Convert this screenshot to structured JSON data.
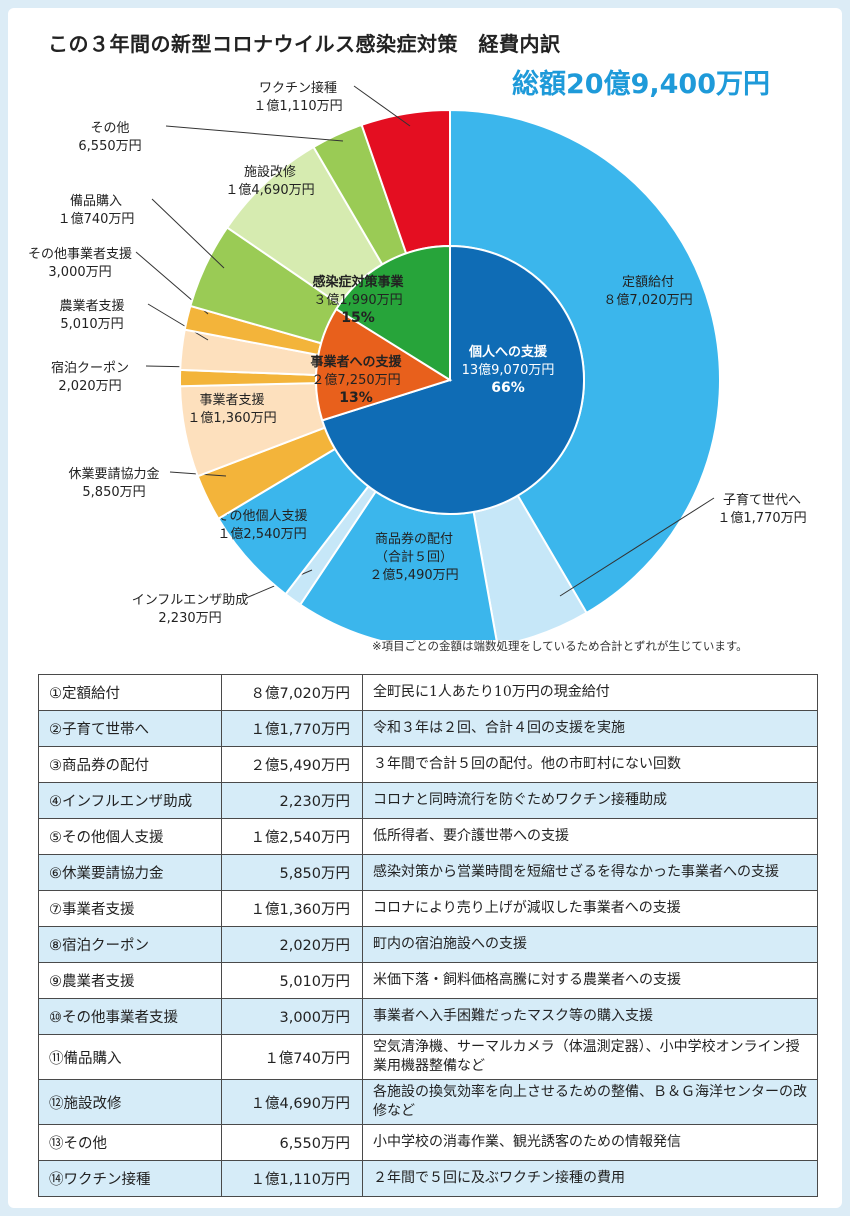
{
  "title": "この３年間の新型コロナウイルス感染症対策　経費内訳",
  "total": "総額20億9,400万円",
  "note": "※項目ごとの金額は端数処理をしているため合計とずれが生じています。",
  "colors": {
    "personal": "#0f6cb5",
    "business": "#e8601c",
    "infection": "#27a43a",
    "sky": "#3bb6ec",
    "pale_blue": "#c6e7f8",
    "orange": "#f3b43a",
    "peach": "#fde0bd",
    "green": "#9acb55",
    "pale_green": "#d6ebb0",
    "red": "#e40e21"
  },
  "chart_data": {
    "type": "pie",
    "inner": [
      {
        "name": "個人への支援",
        "amount": "13億9,070万円",
        "percent": "66%",
        "value": 1390.7
      },
      {
        "name": "事業者への支援",
        "amount": "２億7,250万円",
        "percent": "13%",
        "value": 272.5
      },
      {
        "name": "感染症対策事業",
        "amount": "３億1,990万円",
        "percent": "15%",
        "value": 319.9
      }
    ],
    "outer": [
      {
        "name": "定額給付",
        "amount": "８億7,020万円",
        "value": 870.2
      },
      {
        "name": "子育て世代へ",
        "amount": "１億1,770万円",
        "value": 117.7
      },
      {
        "name": "商品券の配付",
        "name2": "（合計５回）",
        "amount": "２億5,490万円",
        "value": 254.9
      },
      {
        "name": "インフルエンザ助成",
        "amount": "2,230万円",
        "value": 22.3
      },
      {
        "name": "その他個人支援",
        "amount": "１億2,540万円",
        "value": 125.4
      },
      {
        "name": "休業要請協力金",
        "amount": "5,850万円",
        "value": 58.5
      },
      {
        "name": "事業者支援",
        "amount": "１億1,360万円",
        "value": 113.6
      },
      {
        "name": "宿泊クーポン",
        "amount": "2,020万円",
        "value": 20.2
      },
      {
        "name": "農業者支援",
        "amount": "5,010万円",
        "value": 50.1
      },
      {
        "name": "その他事業者支援",
        "amount": "3,000万円",
        "value": 30.0
      },
      {
        "name": "備品購入",
        "amount": "１億740万円",
        "value": 107.4
      },
      {
        "name": "施設改修",
        "amount": "１億4,690万円",
        "value": 146.9
      },
      {
        "name": "その他",
        "amount": "6,550万円",
        "value": 65.5
      },
      {
        "name": "ワクチン接種",
        "amount": "１億1,110万円",
        "value": 111.1
      }
    ]
  },
  "table": [
    {
      "no": "①",
      "name": "定額給付",
      "amount": "８億7,020万円",
      "desc": "全町民に1人あたり10万円の現金給付"
    },
    {
      "no": "②",
      "name": "子育て世帯へ",
      "amount": "１億1,770万円",
      "desc": "令和３年は２回、合計４回の支援を実施"
    },
    {
      "no": "③",
      "name": "商品券の配付",
      "amount": "２億5,490万円",
      "desc": "３年間で合計５回の配付。他の市町村にない回数"
    },
    {
      "no": "④",
      "name": "インフルエンザ助成",
      "amount": "2,230万円",
      "desc": "コロナと同時流行を防ぐためワクチン接種助成"
    },
    {
      "no": "⑤",
      "name": "その他個人支援",
      "amount": "１億2,540万円",
      "desc": "低所得者、要介護世帯への支援"
    },
    {
      "no": "⑥",
      "name": "休業要請協力金",
      "amount": "5,850万円",
      "desc": "感染対策から営業時間を短縮せざるを得なかった事業者への支援"
    },
    {
      "no": "⑦",
      "name": "事業者支援",
      "amount": "１億1,360万円",
      "desc": "コロナにより売り上げが減収した事業者への支援"
    },
    {
      "no": "⑧",
      "name": "宿泊クーポン",
      "amount": "2,020万円",
      "desc": "町内の宿泊施設への支援"
    },
    {
      "no": "⑨",
      "name": "農業者支援",
      "amount": "5,010万円",
      "desc": "米価下落・飼料価格高騰に対する農業者への支援"
    },
    {
      "no": "⑩",
      "name": "その他事業者支援",
      "amount": "3,000万円",
      "desc": "事業者へ入手困難だったマスク等の購入支援"
    },
    {
      "no": "⑪",
      "name": "備品購入",
      "amount": "１億740万円",
      "desc": "空気清浄機、サーマルカメラ（体温測定器）、小中学校オンライン授業用機器整備など"
    },
    {
      "no": "⑫",
      "name": "施設改修",
      "amount": "１億4,690万円",
      "desc": "各施設の換気効率を向上させるための整備、Ｂ＆Ｇ海洋センターの改修など"
    },
    {
      "no": "⑬",
      "name": "その他",
      "amount": "6,550万円",
      "desc": "小中学校の消毒作業、観光誘客のための情報発信"
    },
    {
      "no": "⑭",
      "name": "ワクチン接種",
      "amount": "１億1,110万円",
      "desc": "２年間で５回に及ぶワクチン接種の費用"
    }
  ]
}
